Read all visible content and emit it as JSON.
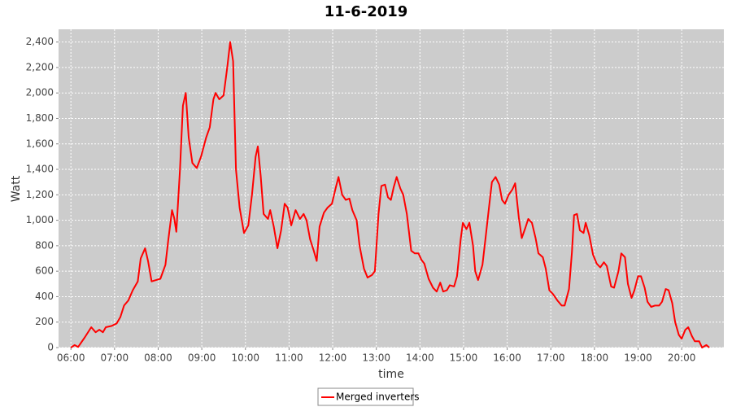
{
  "chart_data": {
    "type": "line",
    "title": "11-6-2019",
    "x_label": "time",
    "y_label": "Watt",
    "x": [
      "06:00",
      "06:05",
      "06:10",
      "06:19",
      "06:28",
      "06:34",
      "06:39",
      "06:44",
      "06:48",
      "06:56",
      "07:03",
      "07:08",
      "07:13",
      "07:19",
      "07:25",
      "07:32",
      "07:36",
      "07:42",
      "07:46",
      "07:51",
      "07:57",
      "08:03",
      "08:10",
      "08:14",
      "08:19",
      "08:22",
      "08:25",
      "08:30",
      "08:34",
      "08:38",
      "08:42",
      "08:47",
      "08:53",
      "08:59",
      "09:06",
      "09:11",
      "09:16",
      "09:19",
      "09:24",
      "09:30",
      "09:35",
      "09:39",
      "09:43",
      "09:47",
      "09:52",
      "09:58",
      "10:04",
      "10:09",
      "10:14",
      "10:17",
      "10:21",
      "10:25",
      "10:31",
      "10:34",
      "10:39",
      "10:44",
      "10:49",
      "10:54",
      "10:58",
      "11:03",
      "11:09",
      "11:15",
      "11:20",
      "11:24",
      "11:29",
      "11:34",
      "11:38",
      "11:42",
      "11:48",
      "11:53",
      "11:59",
      "12:04",
      "12:08",
      "12:13",
      "12:18",
      "12:23",
      "12:27",
      "12:33",
      "12:37",
      "12:43",
      "12:48",
      "12:54",
      "12:58",
      "13:03",
      "13:07",
      "13:12",
      "13:16",
      "13:20",
      "13:24",
      "13:28",
      "13:33",
      "13:37",
      "13:42",
      "13:48",
      "13:53",
      "13:58",
      "14:02",
      "14:06",
      "14:12",
      "14:18",
      "14:23",
      "14:28",
      "14:32",
      "14:37",
      "14:41",
      "14:47",
      "14:51",
      "14:56",
      "14:59",
      "15:04",
      "15:08",
      "15:13",
      "15:16",
      "15:20",
      "15:26",
      "15:30",
      "15:35",
      "15:39",
      "15:44",
      "15:49",
      "15:53",
      "15:57",
      "16:02",
      "16:07",
      "16:11",
      "16:16",
      "16:20",
      "16:25",
      "16:29",
      "16:34",
      "16:39",
      "16:43",
      "16:49",
      "16:53",
      "16:58",
      "17:03",
      "17:09",
      "17:15",
      "17:19",
      "17:25",
      "17:29",
      "17:32",
      "17:36",
      "17:40",
      "17:45",
      "17:48",
      "17:53",
      "17:58",
      "18:03",
      "18:08",
      "18:13",
      "18:17",
      "18:23",
      "18:27",
      "18:33",
      "18:37",
      "18:42",
      "18:46",
      "18:51",
      "18:55",
      "19:00",
      "19:04",
      "19:09",
      "19:13",
      "19:18",
      "19:23",
      "19:29",
      "19:33",
      "19:38",
      "19:42",
      "19:47",
      "19:51",
      "19:56",
      "20:00",
      "20:05",
      "20:09",
      "20:14",
      "20:18",
      "20:24",
      "20:28",
      "20:34",
      "20:38"
    ],
    "series": [
      {
        "name": "Merged inverters",
        "color": "#ff0000",
        "values": [
          0,
          20,
          5,
          80,
          160,
          120,
          140,
          120,
          160,
          170,
          190,
          240,
          330,
          370,
          450,
          520,
          700,
          780,
          680,
          520,
          530,
          540,
          650,
          850,
          1080,
          1020,
          910,
          1400,
          1900,
          2000,
          1650,
          1450,
          1410,
          1500,
          1650,
          1730,
          1950,
          2000,
          1950,
          1980,
          2200,
          2400,
          2250,
          1400,
          1100,
          900,
          960,
          1200,
          1500,
          1580,
          1350,
          1050,
          1010,
          1080,
          950,
          780,
          920,
          1130,
          1100,
          960,
          1080,
          1010,
          1050,
          1000,
          850,
          760,
          680,
          950,
          1060,
          1100,
          1130,
          1250,
          1340,
          1200,
          1160,
          1170,
          1080,
          1000,
          800,
          620,
          550,
          570,
          600,
          1050,
          1270,
          1280,
          1180,
          1160,
          1260,
          1340,
          1250,
          1200,
          1050,
          760,
          740,
          740,
          690,
          660,
          540,
          470,
          440,
          510,
          440,
          450,
          490,
          480,
          560,
          850,
          980,
          930,
          980,
          800,
          600,
          530,
          650,
          850,
          1100,
          1300,
          1340,
          1280,
          1160,
          1130,
          1200,
          1240,
          1290,
          1020,
          860,
          940,
          1010,
          980,
          860,
          740,
          710,
          620,
          450,
          420,
          370,
          330,
          330,
          460,
          750,
          1040,
          1050,
          920,
          900,
          980,
          880,
          730,
          660,
          630,
          670,
          640,
          480,
          470,
          600,
          740,
          710,
          500,
          390,
          450,
          560,
          560,
          470,
          360,
          320,
          330,
          330,
          360,
          460,
          450,
          350,
          200,
          100,
          70,
          140,
          160,
          90,
          50,
          50,
          0,
          20,
          0
        ]
      }
    ],
    "xlim": [
      "05:43",
      "20:58"
    ],
    "xticks": [
      "06:00",
      "07:00",
      "08:00",
      "09:00",
      "10:00",
      "11:00",
      "12:00",
      "13:00",
      "14:00",
      "15:00",
      "16:00",
      "17:00",
      "18:00",
      "19:00",
      "20:00"
    ],
    "ylim": [
      0,
      2500
    ],
    "yticks": [
      0,
      200,
      400,
      600,
      800,
      {
        "value": 1000,
        "label": "1,000"
      },
      {
        "value": 1200,
        "label": "1,200"
      },
      {
        "value": 1400,
        "label": "1,400"
      },
      {
        "value": 1600,
        "label": "1,600"
      },
      {
        "value": 1800,
        "label": "1,800"
      },
      {
        "value": 2000,
        "label": "2,000"
      },
      {
        "value": 2200,
        "label": "2,200"
      },
      {
        "value": 2400,
        "label": "2,400"
      }
    ],
    "grid": true,
    "legend": "bottom"
  }
}
